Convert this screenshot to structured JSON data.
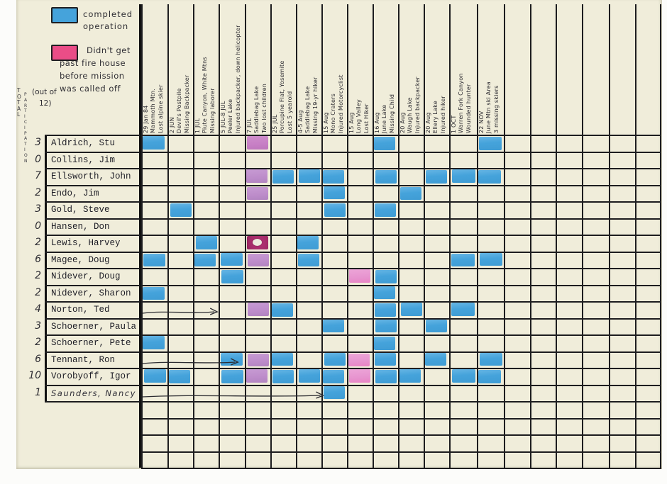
{
  "title": "Search and rescue mission participation tally sheet",
  "legend": {
    "completed": {
      "color": "#45a3db",
      "label": "completed\noperation"
    },
    "aborted": {
      "color": "#ea4d87",
      "label": "Didn't get\npast fire house\nbefore mission\nwas called off"
    }
  },
  "axis_left": {
    "title": "TOTAL",
    "subtitle": "PARTICIPATION",
    "note1": "(out of",
    "note2": "12)"
  },
  "cell_colors": {
    "blue": "#45a3db",
    "purple": "#bd8cca",
    "orchid": "#c77fc5",
    "pink": "#e794cf",
    "darkmagenta": "#a32a68"
  },
  "chart_data": {
    "type": "table",
    "legend_meaning": {
      "blue": "completed operation",
      "pink_purple": "didn't get past fire house before mission was called off"
    },
    "columns": [
      {
        "date": "29 Jan 84",
        "place": "Mammoth Mtn.",
        "subject": "Lost alpine skier"
      },
      {
        "date": "2 JUN",
        "place": "Devil's Postpile",
        "subject": "Missing Backpacker"
      },
      {
        "date": "1 JUL",
        "place": "Piute Canyon, White Mtns",
        "subject": "Missing laborer"
      },
      {
        "date": "5 JUL-8 JUL",
        "place": "Peeler Lake",
        "subject": "Injured backpacker, down helicopter"
      },
      {
        "date": "7 JUL",
        "place": "Saddlebag Lake",
        "subject": "Two lost children"
      },
      {
        "date": "25 JUL",
        "place": "Porcupine Flat, Yosemite",
        "subject": "Lost 5 yearold"
      },
      {
        "date": "4-5 Aug",
        "place": "Saddlebag Lake",
        "subject": "Missing 19-yr hiker"
      },
      {
        "date": "15 Aug",
        "place": "Mono Craters",
        "subject": "Injured Motorcyclist"
      },
      {
        "date": "15 Aug",
        "place": "Long Valley",
        "subject": "Lost Hiker"
      },
      {
        "date": "16 Aug",
        "place": "June Lake",
        "subject": "Missing Child"
      },
      {
        "date": "20 Aug",
        "place": "Waugh Lake",
        "subject": "Injured backpacker"
      },
      {
        "date": "20 Aug",
        "place": "Ellery Lake",
        "subject": "Injured hiker"
      },
      {
        "date": "1 OCT",
        "place": "Warren Fork Canyon",
        "subject": "Wounded hunter"
      },
      {
        "date": "22 NOV",
        "place": "June Mtn ski Area",
        "subject": "3 missing skiers"
      }
    ],
    "empty_trailing_columns": 6,
    "empty_trailing_rows": 4,
    "rows": [
      {
        "name": "Aldrich, Stu",
        "total": "3",
        "cells": {
          "1": "blue",
          "5": "orchid",
          "10": "blue",
          "14": "blue"
        }
      },
      {
        "name": "Collins, Jim",
        "total": "0",
        "cells": {}
      },
      {
        "name": "Ellsworth, John",
        "total": "7",
        "cells": {
          "5": "purple",
          "6": "blue",
          "7": "blue",
          "8": "blue",
          "10": "blue",
          "12": "blue",
          "13": "blue",
          "14": "blue"
        }
      },
      {
        "name": "Endo, Jim",
        "total": "2",
        "cells": {
          "5": "purple",
          "8": "blue",
          "11": "blue"
        }
      },
      {
        "name": "Gold, Steve",
        "total": "3",
        "cells": {
          "2": "blue",
          "8": "blue",
          "10": "blue"
        }
      },
      {
        "name": "Hansen, Don",
        "total": "0",
        "cells": {}
      },
      {
        "name": "Lewis, Harvey",
        "total": "2",
        "cells": {
          "3": "blue",
          "5": "darkmagenta",
          "7": "blue"
        }
      },
      {
        "name": "Magee, Doug",
        "total": "6",
        "cells": {
          "1": "blue",
          "3": "blue",
          "4": "blue",
          "5": "purple",
          "7": "blue",
          "13": "blue",
          "14": "blue"
        }
      },
      {
        "name": "Nidever, Doug",
        "total": "2",
        "cells": {
          "4": "blue",
          "9": "pink",
          "10": "blue"
        }
      },
      {
        "name": "Nidever, Sharon",
        "total": "2",
        "cells": {
          "1": "blue",
          "10": "blue"
        }
      },
      {
        "name": "Norton, Ted",
        "total": "4",
        "cells": {
          "5": "purple",
          "6": "blue",
          "10": "blue",
          "11": "blue",
          "13": "blue"
        },
        "arrow_to_col": 4
      },
      {
        "name": "Schoerner, Paula",
        "total": "3",
        "cells": {
          "8": "blue",
          "10": "blue",
          "12": "blue"
        }
      },
      {
        "name": "Schoerner, Pete",
        "total": "2",
        "cells": {
          "1": "blue",
          "10": "blue"
        }
      },
      {
        "name": "Tennant, Ron",
        "total": "6",
        "cells": {
          "4": "blue",
          "5": "purple",
          "6": "blue",
          "8": "blue",
          "9": "pink",
          "10": "blue",
          "12": "blue",
          "14": "blue"
        },
        "arrow_to_col": 4.8
      },
      {
        "name": "Vorobyoff, Igor",
        "total": "10",
        "cells": {
          "1": "blue",
          "2": "blue",
          "4": "blue",
          "5": "purple",
          "6": "blue",
          "7": "blue",
          "8": "blue",
          "9": "pink",
          "10": "blue",
          "11": "blue",
          "13": "blue",
          "14": "blue"
        }
      },
      {
        "name": "Saunders, Nancy",
        "total": "1",
        "handwritten": true,
        "cells": {
          "8": "blue"
        },
        "arrow_to_col": 8.1
      }
    ]
  }
}
